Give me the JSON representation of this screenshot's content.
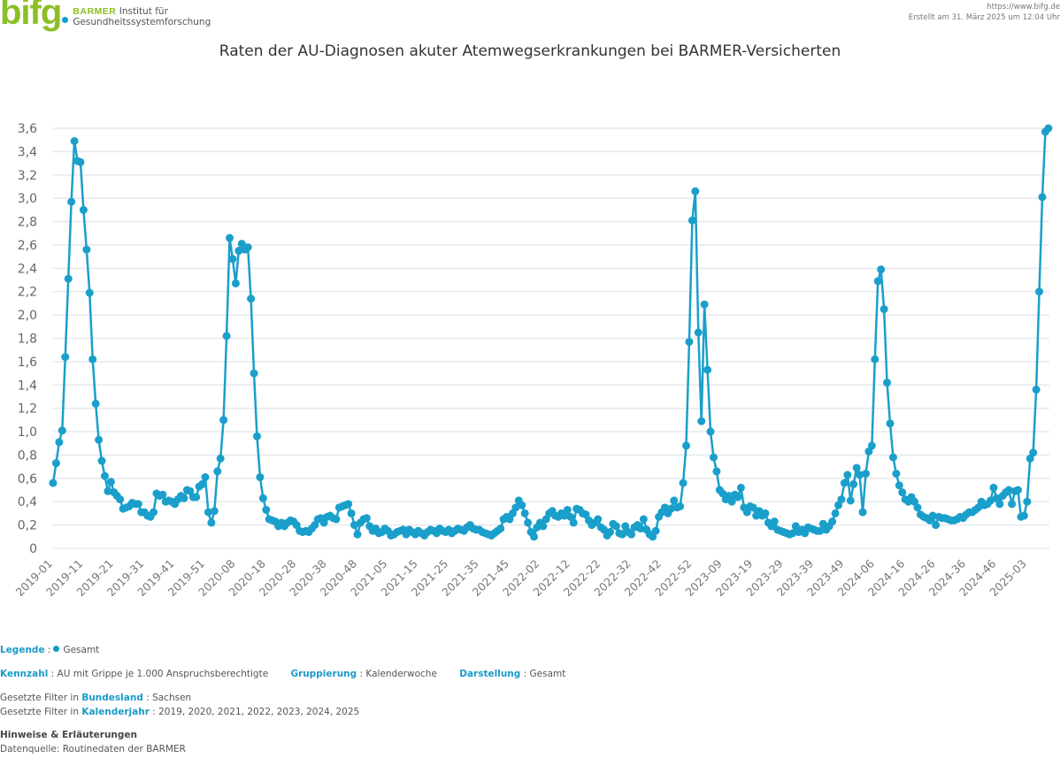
{
  "header": {
    "logo_mark": "bifg",
    "logo_brand": "BARMER",
    "logo_line1": "Institut für",
    "logo_line2": "Gesundheitssystemforschung",
    "url": "https://www.bifg.de",
    "created": "Erstellt am 31. März 2025 um 12:04 Uhr"
  },
  "chart_data": {
    "type": "line",
    "title": "Raten der AU-Diagnosen akuter Atemwegserkrankungen bei BARMER-Versicherten",
    "xlabel": "",
    "ylabel": "",
    "ylim": [
      0,
      3.6
    ],
    "yticks": [
      "0",
      "0,2",
      "0,4",
      "0,6",
      "0,8",
      "1,0",
      "1,2",
      "1,4",
      "1,6",
      "1,8",
      "2,0",
      "2,2",
      "2,4",
      "2,6",
      "2,8",
      "3,0",
      "3,2",
      "3,4",
      "3,6"
    ],
    "xtick_labels": [
      "2019-01",
      "2019-11",
      "2019-21",
      "2019-31",
      "2019-41",
      "2019-51",
      "2020-08",
      "2020-18",
      "2020-28",
      "2020-38",
      "2020-48",
      "2021-05",
      "2021-15",
      "2021-25",
      "2021-35",
      "2021-45",
      "2022-02",
      "2022-12",
      "2022-22",
      "2022-32",
      "2022-42",
      "2022-52",
      "2023-09",
      "2023-19",
      "2023-29",
      "2023-39",
      "2023-49",
      "2024-06",
      "2024-16",
      "2024-26",
      "2024-36",
      "2024-46",
      "2025-03"
    ],
    "grid": true,
    "color": "#1a9fcb",
    "series": [
      {
        "name": "Gesamt",
        "values": [
          0.56,
          0.73,
          0.91,
          1.01,
          1.64,
          2.31,
          2.97,
          3.49,
          3.32,
          3.31,
          2.9,
          2.56,
          2.19,
          1.62,
          1.24,
          0.93,
          0.75,
          0.62,
          0.49,
          0.57,
          0.48,
          0.45,
          0.42,
          0.34,
          0.35,
          0.36,
          0.39,
          0.38,
          0.38,
          0.31,
          0.31,
          0.28,
          0.27,
          0.31,
          0.47,
          0.45,
          0.46,
          0.4,
          0.41,
          0.4,
          0.38,
          0.42,
          0.45,
          0.43,
          0.5,
          0.49,
          0.44,
          0.44,
          0.53,
          0.55,
          0.61,
          0.31,
          0.22,
          0.32,
          0.66,
          0.77,
          1.1,
          1.82,
          2.66,
          2.48,
          2.27,
          2.55,
          2.61,
          2.56,
          2.58,
          2.14,
          1.5,
          0.96,
          0.61,
          0.43,
          0.33,
          0.25,
          0.24,
          0.23,
          0.19,
          0.22,
          0.19,
          0.22,
          0.24,
          0.23,
          0.2,
          0.15,
          0.14,
          0.15,
          0.14,
          0.17,
          0.2,
          0.25,
          0.26,
          0.22,
          0.27,
          0.28,
          0.26,
          0.25,
          0.35,
          0.36,
          0.37,
          0.38,
          0.3,
          0.2,
          0.12,
          0.22,
          0.25,
          0.26,
          0.19,
          0.15,
          0.17,
          0.13,
          0.14,
          0.17,
          0.15,
          0.11,
          0.12,
          0.14,
          0.15,
          0.16,
          0.12,
          0.16,
          0.14,
          0.12,
          0.15,
          0.13,
          0.11,
          0.14,
          0.16,
          0.15,
          0.13,
          0.17,
          0.15,
          0.14,
          0.16,
          0.13,
          0.15,
          0.17,
          0.16,
          0.15,
          0.18,
          0.2,
          0.17,
          0.16,
          0.16,
          0.14,
          0.13,
          0.12,
          0.11,
          0.13,
          0.15,
          0.17,
          0.25,
          0.27,
          0.25,
          0.3,
          0.35,
          0.41,
          0.37,
          0.3,
          0.22,
          0.14,
          0.1,
          0.18,
          0.22,
          0.19,
          0.25,
          0.3,
          0.32,
          0.28,
          0.27,
          0.3,
          0.28,
          0.33,
          0.27,
          0.22,
          0.34,
          0.33,
          0.3,
          0.29,
          0.24,
          0.2,
          0.22,
          0.25,
          0.18,
          0.16,
          0.11,
          0.14,
          0.21,
          0.19,
          0.13,
          0.12,
          0.19,
          0.14,
          0.12,
          0.18,
          0.2,
          0.17,
          0.25,
          0.16,
          0.12,
          0.1,
          0.15,
          0.27,
          0.31,
          0.35,
          0.3,
          0.34,
          0.41,
          0.35,
          0.36,
          0.56,
          0.88,
          1.77,
          2.81,
          3.06,
          1.85,
          1.09,
          2.09,
          1.53,
          1.0,
          0.78,
          0.66,
          0.5,
          0.47,
          0.42,
          0.45,
          0.4,
          0.46,
          0.44,
          0.52,
          0.35,
          0.31,
          0.36,
          0.35,
          0.28,
          0.32,
          0.28,
          0.3,
          0.22,
          0.19,
          0.23,
          0.16,
          0.15,
          0.14,
          0.13,
          0.12,
          0.13,
          0.19,
          0.14,
          0.16,
          0.13,
          0.18,
          0.17,
          0.16,
          0.15,
          0.15,
          0.21,
          0.16,
          0.19,
          0.23,
          0.3,
          0.37,
          0.42,
          0.56,
          0.63,
          0.41,
          0.55,
          0.69,
          0.63,
          0.31,
          0.64,
          0.83,
          0.88,
          1.62,
          2.29,
          2.39,
          2.05,
          1.42,
          1.07,
          0.78,
          0.64,
          0.54,
          0.48,
          0.42,
          0.4,
          0.44,
          0.4,
          0.35,
          0.29,
          0.27,
          0.26,
          0.24,
          0.28,
          0.2,
          0.27,
          0.26,
          0.26,
          0.25,
          0.24,
          0.24,
          0.25,
          0.27,
          0.26,
          0.29,
          0.31,
          0.31,
          0.33,
          0.35,
          0.4,
          0.37,
          0.38,
          0.41,
          0.52,
          0.43,
          0.38,
          0.45,
          0.48,
          0.5,
          0.38,
          0.49,
          0.5,
          0.27,
          0.28,
          0.4,
          0.77,
          0.82,
          1.36,
          2.2,
          3.01,
          3.57,
          3.6
        ]
      }
    ]
  },
  "legend": {
    "label": "Legende",
    "item": "Gesamt"
  },
  "info": {
    "kennzahl_label": "Kennzahl",
    "kennzahl": "AU mit Grippe je 1.000 Anspruchsberechtigte",
    "gruppierung_label": "Gruppierung",
    "gruppierung": "Kalenderwoche",
    "darstellung_label": "Darstellung",
    "darstellung": "Gesamt",
    "filter_prefix": "Gesetzte Filter in",
    "filter1_label": "Bundesland",
    "filter1": "Sachsen",
    "filter2_label": "Kalenderjahr",
    "filter2": "2019, 2020, 2021, 2022, 2023, 2024, 2025",
    "notes_title": "Hinweise & Erläuterungen",
    "source": "Datenquelle: Routinedaten der BARMER"
  }
}
